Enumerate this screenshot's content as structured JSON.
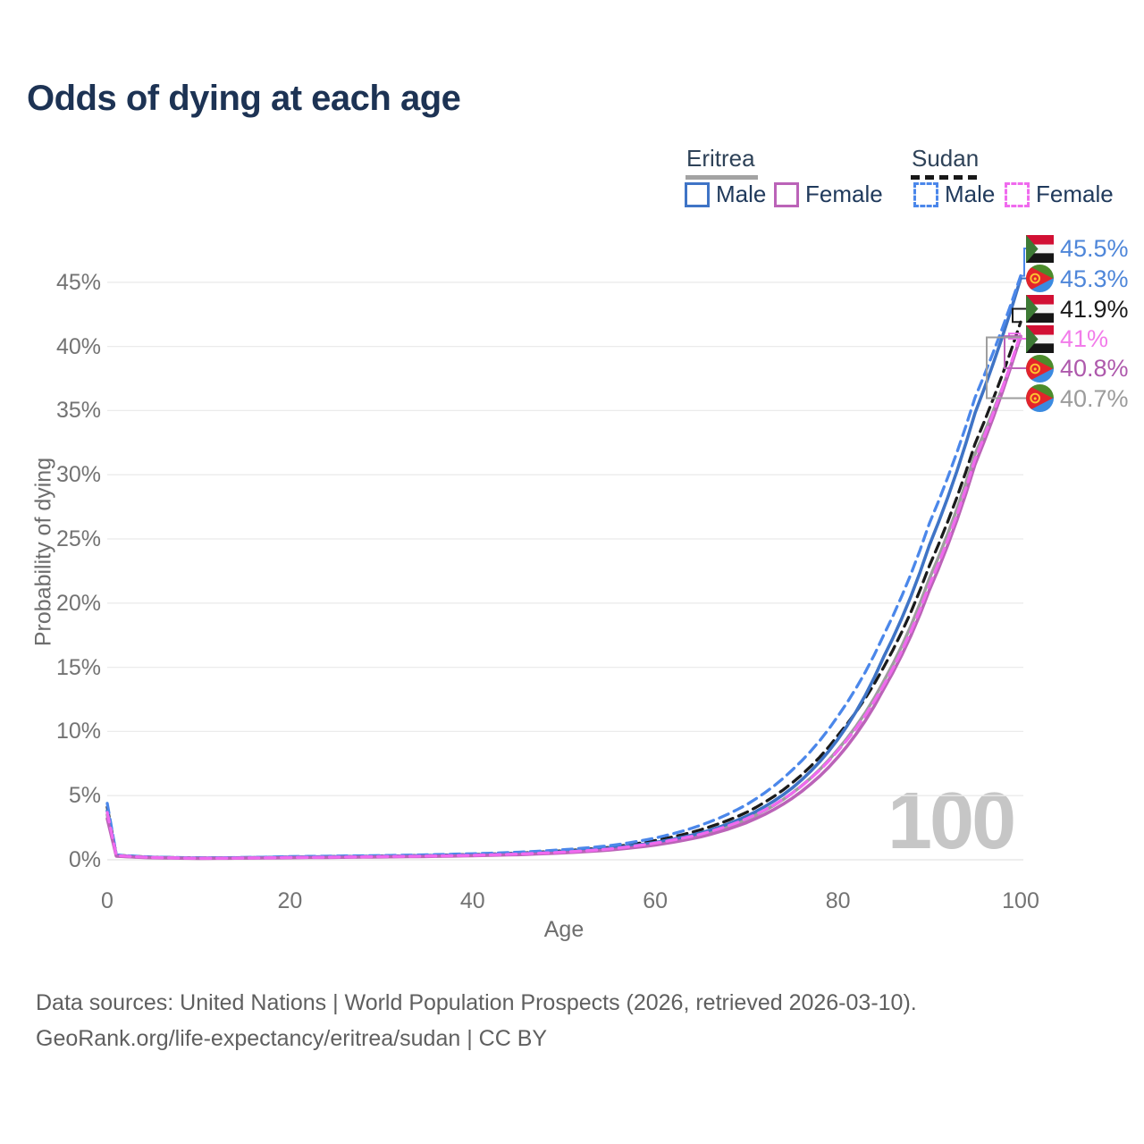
{
  "title": "Odds of dying at each age",
  "legend": {
    "groups": [
      {
        "label": "Eritrea",
        "line_style": "solid",
        "underline_color": "#a3a3a3",
        "items": [
          {
            "label": "Male",
            "color": "#3f74c6"
          },
          {
            "label": "Female",
            "color": "#bb63b8"
          }
        ]
      },
      {
        "label": "Sudan",
        "line_style": "dashed",
        "underline_color": "#181818",
        "items": [
          {
            "label": "Male",
            "color": "#4b87ea"
          },
          {
            "label": "Female",
            "color": "#f06aee"
          }
        ]
      }
    ]
  },
  "chart_data": {
    "type": "line",
    "title": "Odds of dying at each age",
    "xlabel": "Age",
    "ylabel": "Probability of dying",
    "xlim": [
      0,
      100
    ],
    "ylim_percent": [
      0,
      47
    ],
    "grid": "horizontal",
    "legend_position": "top-right",
    "x_tick_labels": [
      "0",
      "20",
      "40",
      "60",
      "80",
      "100"
    ],
    "x_tick_values": [
      0,
      20,
      40,
      60,
      80,
      100
    ],
    "y_tick_labels": [
      "0%",
      "5%",
      "10%",
      "15%",
      "20%",
      "25%",
      "30%",
      "35%",
      "40%",
      "45%"
    ],
    "y_tick_values": [
      0,
      5,
      10,
      15,
      20,
      25,
      30,
      35,
      40,
      45
    ],
    "age_indicator": "100",
    "ages": [
      0,
      1,
      5,
      10,
      15,
      20,
      25,
      30,
      35,
      40,
      45,
      50,
      55,
      60,
      65,
      70,
      75,
      80,
      85,
      90,
      95,
      100
    ],
    "series": [
      {
        "name": "Sudan Male",
        "country": "Sudan",
        "sex": "Male",
        "style": "dashed",
        "color": "#4b87ea",
        "label_color": "#4e86d9",
        "flag": "sudan",
        "end_label": "45.5%",
        "values_percent": [
          4.4,
          0.38,
          0.21,
          0.15,
          0.18,
          0.25,
          0.29,
          0.33,
          0.39,
          0.47,
          0.59,
          0.79,
          1.1,
          1.7,
          2.7,
          4.3,
          7.0,
          11.2,
          17.5,
          26.2,
          36.0,
          45.5
        ]
      },
      {
        "name": "Eritrea Male",
        "country": "Eritrea",
        "sex": "Male",
        "style": "solid",
        "color": "#3f74c6",
        "label_color": "#4e86d9",
        "flag": "eritrea",
        "end_label": "45.3%",
        "values_percent": [
          3.8,
          0.33,
          0.18,
          0.13,
          0.16,
          0.21,
          0.24,
          0.27,
          0.32,
          0.38,
          0.48,
          0.64,
          0.9,
          1.35,
          2.1,
          3.4,
          5.6,
          9.4,
          15.8,
          24.5,
          34.8,
          45.3
        ]
      },
      {
        "name": "Sudan Both sexes",
        "country": "Sudan",
        "sex": "Both",
        "style": "dashed",
        "color": "#1b1b1b",
        "label_color": "#1b1b1b",
        "flag": "sudan",
        "end_label": "41.9%",
        "values_percent": [
          4.1,
          0.36,
          0.2,
          0.14,
          0.16,
          0.21,
          0.25,
          0.29,
          0.34,
          0.41,
          0.52,
          0.7,
          0.97,
          1.5,
          2.35,
          3.7,
          6.0,
          9.7,
          15.0,
          22.9,
          32.4,
          41.9
        ]
      },
      {
        "name": "Sudan Female",
        "country": "Sudan",
        "sex": "Female",
        "style": "dashed",
        "color": "#f06aee",
        "label_color": "#f27cea",
        "flag": "sudan",
        "end_label": "41%",
        "values_percent": [
          3.7,
          0.33,
          0.18,
          0.12,
          0.14,
          0.18,
          0.21,
          0.25,
          0.29,
          0.35,
          0.45,
          0.6,
          0.84,
          1.3,
          2.0,
          3.2,
          5.2,
          8.5,
          13.6,
          21.4,
          31.2,
          41.0
        ]
      },
      {
        "name": "Eritrea Female",
        "country": "Eritrea",
        "sex": "Female",
        "style": "solid",
        "color": "#bb63b8",
        "label_color": "#ae59ac",
        "flag": "eritrea",
        "end_label": "40.8%",
        "values_percent": [
          3.2,
          0.28,
          0.16,
          0.11,
          0.13,
          0.16,
          0.19,
          0.22,
          0.26,
          0.32,
          0.4,
          0.54,
          0.76,
          1.15,
          1.8,
          2.9,
          4.8,
          8.0,
          13.3,
          21.0,
          30.8,
          40.8
        ]
      },
      {
        "name": "Eritrea Both sexes",
        "country": "Eritrea",
        "sex": "Both",
        "style": "solid",
        "color": "#9e9e9e",
        "label_color": "#9b9b9b",
        "flag": "eritrea",
        "end_label": "40.7%",
        "values_percent": [
          3.5,
          0.3,
          0.17,
          0.12,
          0.14,
          0.19,
          0.22,
          0.25,
          0.29,
          0.35,
          0.44,
          0.59,
          0.83,
          1.25,
          1.95,
          3.15,
          5.2,
          8.6,
          13.9,
          21.9,
          31.6,
          40.7
        ]
      }
    ]
  },
  "footer": {
    "line1": "Data sources: United Nations | World Population Prospects (2026, retrieved 2026-03-10).",
    "line2": "GeoRank.org/life-expectancy/eritrea/sudan | CC BY"
  }
}
